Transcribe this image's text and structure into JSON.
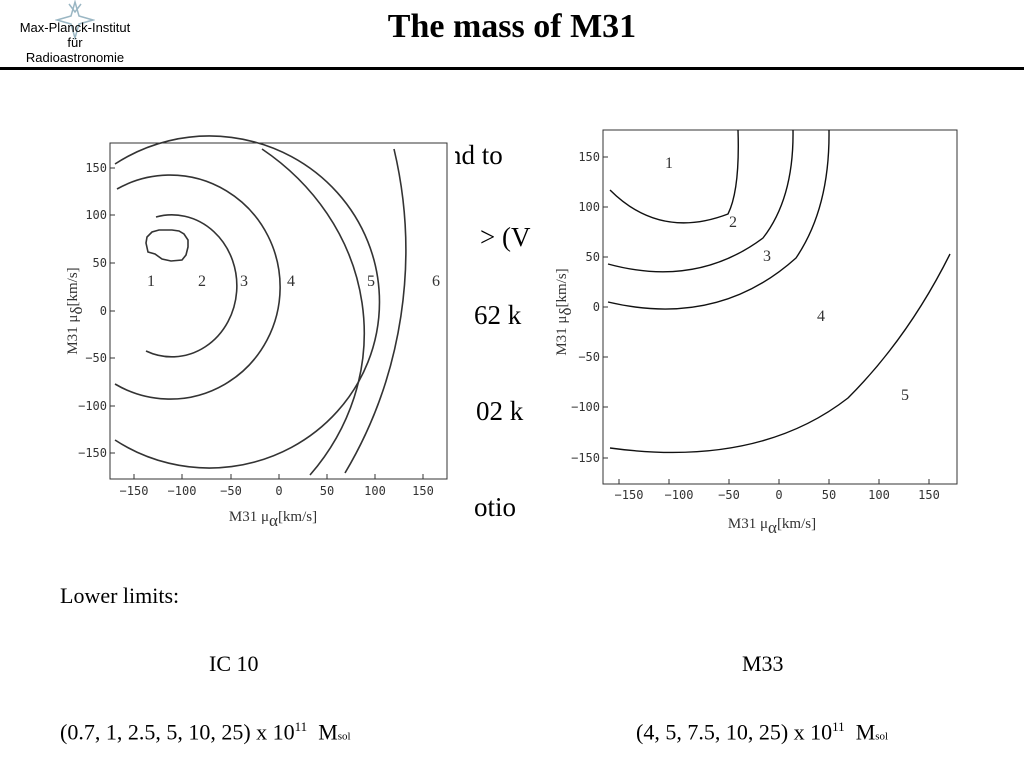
{
  "header": {
    "logo_lines": [
      "Max-Planck-Institut",
      "für",
      "Radioastronomie"
    ],
    "title": "The mass of M31"
  },
  "background_fragments": [
    "nd to",
    "> (V",
    "62 k",
    "02 k",
    "otio"
  ],
  "plot_left": {
    "x_ticks": [
      "−150",
      "−100",
      "−50",
      "0",
      "50",
      "100",
      "150"
    ],
    "y_ticks": [
      "150",
      "100",
      "50",
      "0",
      "−50",
      "−100",
      "−150"
    ],
    "x_label_main": "M31 μ",
    "x_label_sub": "α",
    "x_label_unit": "[km/s]",
    "y_label_main": "M31 μ",
    "y_label_sub": "δ",
    "y_label_unit": "[km/s]",
    "contour_labels": [
      "1",
      "2",
      "3",
      "4",
      "5",
      "6"
    ]
  },
  "plot_right": {
    "x_ticks": [
      "−150",
      "−100",
      "−50",
      "0",
      "50",
      "100",
      "150"
    ],
    "y_ticks": [
      "150",
      "100",
      "50",
      "0",
      "−50",
      "−100",
      "−150"
    ],
    "x_label_main": "M31 μ",
    "x_label_sub": "α",
    "x_label_unit": "[km/s]",
    "y_label_main": "M31 μ",
    "y_label_sub": "δ",
    "y_label_unit": "[km/s]",
    "contour_labels": [
      "1",
      "2",
      "3",
      "4",
      "5"
    ]
  },
  "limits": {
    "heading": "Lower limits:",
    "left_name": "IC 10",
    "right_name": "M33",
    "left_values": "(0.7, 1, 2.5, 5, 10, 25) x 10",
    "right_values": "(4, 5, 7.5, 10, 25) x 10",
    "exponent": "11",
    "unit_main": "M",
    "unit_sub": "sol"
  }
}
